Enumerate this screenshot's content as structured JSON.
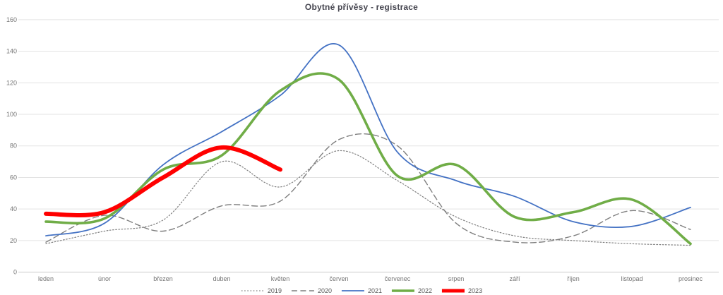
{
  "chart_data": {
    "type": "line",
    "title": "Obytné přívěsy - registrace",
    "xlabel": "",
    "ylabel": "",
    "categories": [
      "leden",
      "únor",
      "březen",
      "duben",
      "květen",
      "červen",
      "červenec",
      "srpen",
      "září",
      "říjen",
      "listopad",
      "prosinec"
    ],
    "series": [
      {
        "name": "2019",
        "color": "#7F7F7F",
        "style": "dotted",
        "width": 1.2,
        "values": [
          18,
          26,
          33,
          70,
          54,
          77,
          58,
          35,
          23,
          20,
          18,
          17
        ]
      },
      {
        "name": "2020",
        "color": "#7F7F7F",
        "style": "dashed",
        "width": 1.4,
        "values": [
          19,
          36,
          26,
          42,
          45,
          84,
          80,
          31,
          19,
          23,
          39,
          27
        ]
      },
      {
        "name": "2021",
        "color": "#4472C4",
        "style": "solid",
        "width": 1.8,
        "values": [
          23,
          31,
          68,
          89,
          112,
          144,
          76,
          58,
          48,
          32,
          29,
          41
        ]
      },
      {
        "name": "2022",
        "color": "#70AD47",
        "style": "solid",
        "width": 3.6,
        "values": [
          32,
          34,
          65,
          74,
          115,
          122,
          61,
          68,
          35,
          38,
          46,
          18
        ]
      },
      {
        "name": "2023",
        "color": "#FF0000",
        "style": "solid",
        "width": 6,
        "values": [
          37,
          38,
          60,
          79,
          65
        ]
      }
    ],
    "y_ticks": [
      0,
      20,
      40,
      60,
      80,
      100,
      120,
      140,
      160
    ],
    "ylim": [
      0,
      160
    ],
    "grid": "horizontal",
    "legend_position": "bottom",
    "smoothed": true
  },
  "colors": {
    "background": "#FFFFFF",
    "gridline": "#E3E3E3",
    "zero_axis": "#C9C9C9",
    "tick_text": "#757575",
    "title_text": "#45454F",
    "legend_text": "#595959"
  }
}
